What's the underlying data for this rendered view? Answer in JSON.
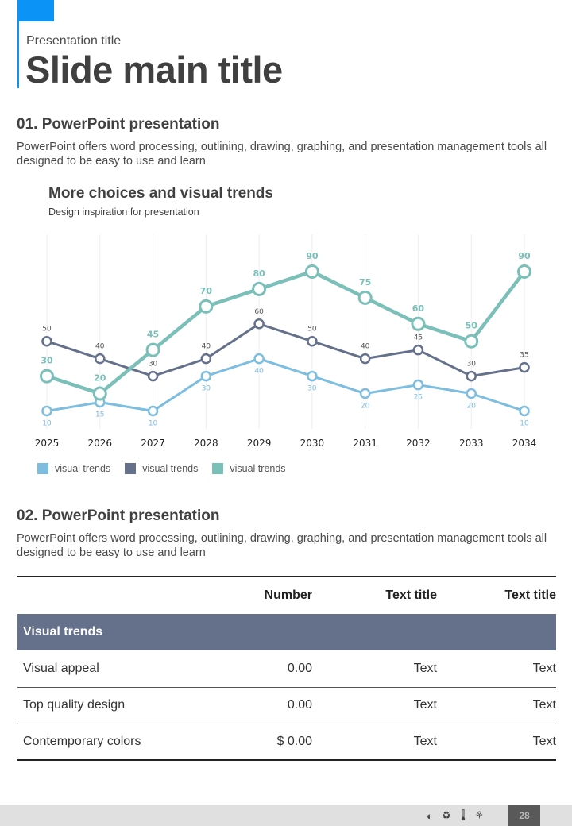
{
  "header": {
    "presentation_title": "Presentation title",
    "main_title": "Slide main title",
    "accent_color": "#0b93f6"
  },
  "section1": {
    "title": "01. PowerPoint presentation",
    "body": "PowerPoint offers word processing, outlining, drawing, graphing, and presentation management tools all designed to be easy to use and learn"
  },
  "chart_data": {
    "type": "line",
    "title": "More choices and visual trends",
    "subtitle": "Design inspiration for presentation",
    "xlabel": "",
    "ylabel": "",
    "categories": [
      "2025",
      "2026",
      "2027",
      "2028",
      "2029",
      "2030",
      "2031",
      "2032",
      "2033",
      "2034"
    ],
    "ylim": [
      0,
      100
    ],
    "grid": "vertical",
    "legend_position": "bottom-left",
    "series": [
      {
        "name": "visual trends",
        "color": "#7cbde0",
        "values": [
          10,
          15,
          10,
          30,
          40,
          30,
          20,
          25,
          20,
          10
        ],
        "label_position": "below"
      },
      {
        "name": "visual trends",
        "color": "#65718b",
        "values": [
          50,
          40,
          30,
          40,
          60,
          50,
          40,
          45,
          30,
          35
        ],
        "label_position": "above"
      },
      {
        "name": "visual trends",
        "color": "#7bbfb9",
        "values": [
          30,
          20,
          45,
          70,
          80,
          90,
          75,
          60,
          50,
          90
        ],
        "label_position": "above"
      }
    ]
  },
  "section2": {
    "title": "02. PowerPoint presentation",
    "body": "PowerPoint offers word processing, outlining, drawing, graphing, and presentation management tools all designed to be easy to use and learn"
  },
  "table": {
    "headers": [
      "",
      "Number",
      "Text title",
      "Text title"
    ],
    "group_label": "Visual trends",
    "group_color": "#65718b",
    "rows": [
      [
        "Visual appeal",
        "0.00",
        "Text",
        "Text"
      ],
      [
        "Top quality design",
        "0.00",
        "Text",
        "Text"
      ],
      [
        "Contemporary colors",
        "$ 0.00",
        "Text",
        "Text"
      ]
    ]
  },
  "footer": {
    "icons": [
      "globe-icon",
      "recycle-icon",
      "thermometer-icon",
      "plant-icon"
    ],
    "icon_glyphs": [
      "◐",
      "♻",
      "🌡",
      "⚘"
    ],
    "page_number": "28"
  }
}
